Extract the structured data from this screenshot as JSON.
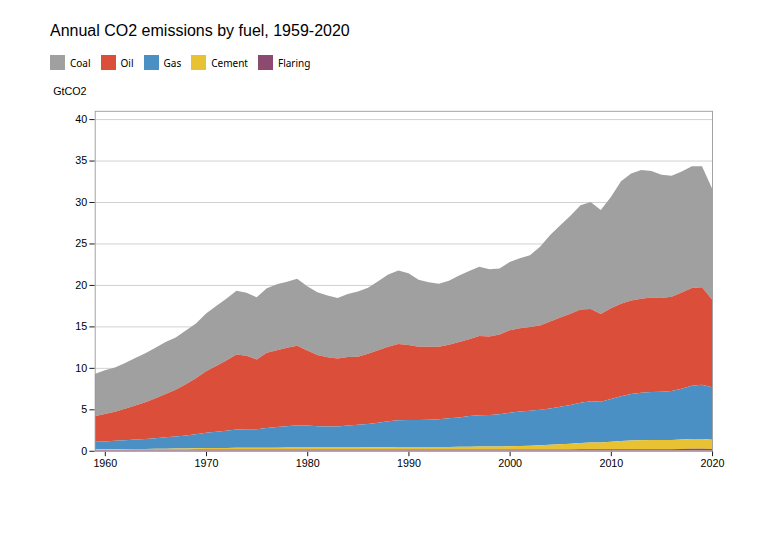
{
  "chart_data": {
    "type": "area",
    "title": "Annual CO2 emissions by fuel, 1959-2020",
    "ylabel": "GtCO2",
    "stacked": true,
    "grid": true,
    "legend": "upper center",
    "x": [
      1959,
      1960,
      1961,
      1962,
      1963,
      1964,
      1965,
      1966,
      1967,
      1968,
      1969,
      1970,
      1971,
      1972,
      1973,
      1974,
      1975,
      1976,
      1977,
      1978,
      1979,
      1980,
      1981,
      1982,
      1983,
      1984,
      1985,
      1986,
      1987,
      1988,
      1989,
      1990,
      1991,
      1992,
      1993,
      1994,
      1995,
      1996,
      1997,
      1998,
      1999,
      2000,
      2001,
      2002,
      2003,
      2004,
      2005,
      2006,
      2007,
      2008,
      2009,
      2010,
      2011,
      2012,
      2013,
      2014,
      2015,
      2016,
      2017,
      2018,
      2019,
      2020
    ],
    "xlim": [
      1959,
      2020
    ],
    "xticks": [
      1960,
      1970,
      1980,
      1990,
      2000,
      2010,
      2020
    ],
    "ylim": [
      0,
      41
    ],
    "yticks": [
      0,
      5,
      10,
      15,
      20,
      25,
      30,
      35,
      40
    ],
    "series": [
      {
        "name": "Coal",
        "color": "#a0a0a0",
        "values": [
          5.1,
          5.28,
          5.35,
          5.52,
          5.74,
          5.92,
          6.1,
          6.28,
          6.32,
          6.48,
          6.62,
          6.96,
          7.22,
          7.44,
          7.68,
          7.58,
          7.5,
          7.78,
          7.96,
          7.96,
          8.1,
          7.76,
          7.58,
          7.44,
          7.3,
          7.58,
          7.86,
          7.96,
          8.32,
          8.7,
          8.88,
          8.66,
          8.09,
          7.8,
          7.58,
          7.72,
          8.04,
          8.22,
          8.36,
          8.1,
          7.98,
          8.24,
          8.46,
          8.68,
          9.5,
          10.44,
          11.12,
          11.82,
          12.58,
          12.9,
          12.56,
          13.44,
          14.77,
          15.33,
          15.51,
          15.26,
          14.88,
          14.6,
          14.6,
          14.68,
          14.58,
          13.38
        ]
      },
      {
        "name": "Oil",
        "color": "#db4f3a",
        "values": [
          3.1,
          3.3,
          3.5,
          3.8,
          4.1,
          4.42,
          4.8,
          5.22,
          5.62,
          6.18,
          6.74,
          7.43,
          7.95,
          8.48,
          9.05,
          8.88,
          8.4,
          9.08,
          9.28,
          9.48,
          9.58,
          9.04,
          8.58,
          8.34,
          8.18,
          8.28,
          8.22,
          8.48,
          8.74,
          8.99,
          9.18,
          9.02,
          8.82,
          8.78,
          8.74,
          8.88,
          9.08,
          9.28,
          9.55,
          9.48,
          9.6,
          9.94,
          10.02,
          10.08,
          10.18,
          10.48,
          10.78,
          10.98,
          11.22,
          11.14,
          10.58,
          10.94,
          11.14,
          11.28,
          11.35,
          11.4,
          11.29,
          11.34,
          11.58,
          11.78,
          11.78,
          10.58
        ]
      },
      {
        "name": "Gas",
        "color": "#4a90c4",
        "values": [
          0.9,
          0.95,
          1.01,
          1.07,
          1.14,
          1.2,
          1.28,
          1.38,
          1.47,
          1.58,
          1.7,
          1.84,
          1.96,
          2.08,
          2.2,
          2.23,
          2.25,
          2.37,
          2.48,
          2.56,
          2.68,
          2.64,
          2.57,
          2.55,
          2.55,
          2.65,
          2.73,
          2.82,
          2.96,
          3.12,
          3.24,
          3.27,
          3.27,
          3.3,
          3.36,
          3.45,
          3.54,
          3.69,
          3.79,
          3.8,
          3.9,
          4.06,
          4.18,
          4.24,
          4.28,
          4.39,
          4.53,
          4.68,
          4.86,
          4.97,
          4.9,
          5.15,
          5.4,
          5.58,
          5.71,
          5.8,
          5.81,
          5.91,
          6.12,
          6.41,
          6.52,
          6.34
        ]
      },
      {
        "name": "Cement",
        "color": "#e8c232",
        "values": [
          0.08,
          0.09,
          0.09,
          0.1,
          0.1,
          0.11,
          0.12,
          0.12,
          0.13,
          0.14,
          0.15,
          0.17,
          0.17,
          0.18,
          0.19,
          0.19,
          0.2,
          0.21,
          0.22,
          0.23,
          0.23,
          0.24,
          0.24,
          0.24,
          0.24,
          0.25,
          0.26,
          0.27,
          0.28,
          0.29,
          0.3,
          0.3,
          0.3,
          0.3,
          0.3,
          0.31,
          0.33,
          0.34,
          0.35,
          0.35,
          0.36,
          0.38,
          0.4,
          0.43,
          0.49,
          0.55,
          0.61,
          0.69,
          0.77,
          0.82,
          0.83,
          0.9,
          1.0,
          1.06,
          1.09,
          1.1,
          1.12,
          1.12,
          1.16,
          1.2,
          1.2,
          1.12
        ]
      },
      {
        "name": "Flaring",
        "color": "#8b4a6e",
        "values": [
          0.1,
          0.1,
          0.11,
          0.11,
          0.12,
          0.12,
          0.13,
          0.13,
          0.14,
          0.14,
          0.15,
          0.16,
          0.16,
          0.16,
          0.17,
          0.17,
          0.16,
          0.16,
          0.16,
          0.16,
          0.17,
          0.17,
          0.16,
          0.15,
          0.15,
          0.15,
          0.15,
          0.15,
          0.15,
          0.15,
          0.15,
          0.16,
          0.16,
          0.16,
          0.16,
          0.16,
          0.16,
          0.16,
          0.16,
          0.16,
          0.16,
          0.16,
          0.17,
          0.17,
          0.17,
          0.17,
          0.17,
          0.17,
          0.18,
          0.18,
          0.18,
          0.19,
          0.19,
          0.2,
          0.2,
          0.2,
          0.2,
          0.2,
          0.22,
          0.24,
          0.24,
          0.22
        ]
      }
    ]
  }
}
